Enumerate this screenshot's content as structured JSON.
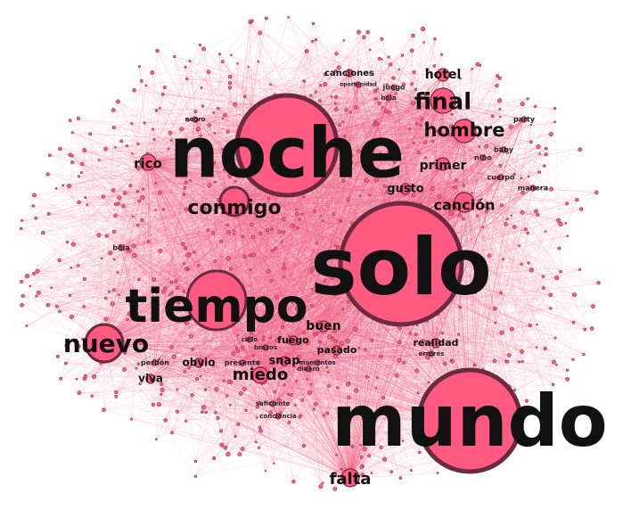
{
  "colors": {
    "background": "#ffffff",
    "node_fill": "#ff5a82",
    "node_stroke": "#6b2a3e",
    "edge": "#f25c80",
    "label": "#111111"
  },
  "network": {
    "hubs": [
      {
        "label": "solo",
        "size": "xl"
      },
      {
        "label": "mundo",
        "size": "xl"
      },
      {
        "label": "noche",
        "size": "xl"
      },
      {
        "label": "tiempo",
        "size": "l"
      },
      {
        "label": "nuevo",
        "size": "m"
      },
      {
        "label": "final",
        "size": "m"
      },
      {
        "label": "hombre",
        "size": "m"
      },
      {
        "label": "conmigo",
        "size": "m"
      },
      {
        "label": "canción",
        "size": "s"
      },
      {
        "label": "miedo",
        "size": "s"
      },
      {
        "label": "falta",
        "size": "s"
      },
      {
        "label": "rico",
        "size": "s"
      },
      {
        "label": "hotel",
        "size": "s"
      },
      {
        "label": "primer",
        "size": "s"
      },
      {
        "label": "gusto",
        "size": "s"
      },
      {
        "label": "buen",
        "size": "s"
      },
      {
        "label": "fuego",
        "size": "xs"
      },
      {
        "label": "pasado",
        "size": "xs"
      },
      {
        "label": "obvio",
        "size": "xs"
      },
      {
        "label": "snap",
        "size": "xs"
      },
      {
        "label": "realidad",
        "size": "xs"
      },
      {
        "label": "viva",
        "size": "xs"
      },
      {
        "label": "canciones",
        "size": "xs"
      },
      {
        "label": "baby",
        "size": "xxs"
      },
      {
        "label": "cuerpo",
        "size": "xxs"
      },
      {
        "label": "manera",
        "size": "xxs"
      },
      {
        "label": "party",
        "size": "xxs"
      },
      {
        "label": "niño",
        "size": "xxs"
      },
      {
        "label": "juego",
        "size": "xxs"
      },
      {
        "label": "negro",
        "size": "xxs"
      },
      {
        "label": "bola",
        "size": "xxs"
      },
      {
        "label": "perdón",
        "size": "xxs"
      },
      {
        "label": "presente",
        "size": "xxs"
      },
      {
        "label": "brazos",
        "size": "xxs"
      },
      {
        "label": "cielo",
        "size": "xxs"
      },
      {
        "label": "momentos",
        "size": "xxs"
      },
      {
        "label": "dinero",
        "size": "xxs"
      },
      {
        "label": "errores",
        "size": "xxs"
      },
      {
        "label": "suficiente",
        "size": "xxs"
      },
      {
        "label": "conciencia",
        "size": "xxs"
      },
      {
        "label": "oportunidad",
        "size": "xxs"
      },
      {
        "label": "hola",
        "size": "xxs"
      }
    ]
  }
}
